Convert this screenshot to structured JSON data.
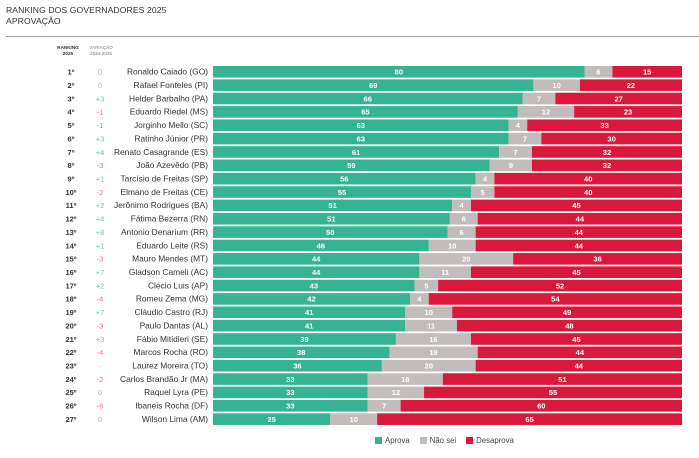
{
  "header": {
    "title_line1": "RANKING DOS GOVERNADORES 2025",
    "title_line2": "APROVAÇÃO"
  },
  "columns": {
    "rank_line1": "RANKING",
    "rank_line2": "2025",
    "variation_line1": "VARIAÇÃO",
    "variation_line2": "2024-2025"
  },
  "colors": {
    "aprova": "#36b393",
    "nao_sei": "#c2bdbb",
    "desaprova": "#d8193c",
    "variation_up": "#6cc7a6",
    "variation_down": "#ee6f8a",
    "variation_neutral": "#bbbbbb"
  },
  "legend": [
    {
      "key": "aprova",
      "label": "Aprova"
    },
    {
      "key": "nao_sei",
      "label": "Não sei"
    },
    {
      "key": "desaprova",
      "label": "Desaprova"
    }
  ],
  "chart_data": {
    "type": "bar",
    "orientation": "horizontal",
    "stacked": true,
    "title": "RANKING DOS GOVERNADORES 2025 — APROVAÇÃO",
    "xlabel": "",
    "ylabel": "",
    "xlim": [
      0,
      100
    ],
    "unit": "%",
    "legend_position": "bottom",
    "grid": false,
    "series_names": [
      "Aprova",
      "Não sei",
      "Desaprova"
    ],
    "rows": [
      {
        "rank": "1º",
        "variation": "0",
        "trend": "neutral",
        "name": "Ronaldo Caiado (GO)",
        "aprova": 80,
        "nao_sei": 6,
        "desaprova": 15
      },
      {
        "rank": "2º",
        "variation": "0",
        "trend": "neutral",
        "name": "Rafael Fonteles (PI)",
        "aprova": 69,
        "nao_sei": 10,
        "desaprova": 22
      },
      {
        "rank": "3º",
        "variation": "+3",
        "trend": "up",
        "name": "Helder Barbalho (PA)",
        "aprova": 66,
        "nao_sei": 7,
        "desaprova": 27
      },
      {
        "rank": "4º",
        "variation": "-1",
        "trend": "down",
        "name": "Eduardo Riedel (MS)",
        "aprova": 65,
        "nao_sei": 12,
        "desaprova": 23
      },
      {
        "rank": "5º",
        "variation": "-1",
        "trend": "down",
        "name": "Jorginho Mello (SC)",
        "aprova": 63,
        "nao_sei": 4,
        "desaprova": 33
      },
      {
        "rank": "6º",
        "variation": "+3",
        "trend": "up",
        "name": "Ratinho Júnior (PR)",
        "aprova": 63,
        "nao_sei": 7,
        "desaprova": 30
      },
      {
        "rank": "7º",
        "variation": "+4",
        "trend": "up",
        "name": "Renato Casagrande (ES)",
        "aprova": 61,
        "nao_sei": 7,
        "desaprova": 32
      },
      {
        "rank": "8º",
        "variation": "-3",
        "trend": "down",
        "name": "João Azevêdo (PB)",
        "aprova": 59,
        "nao_sei": 9,
        "desaprova": 32
      },
      {
        "rank": "9º",
        "variation": "+1",
        "trend": "up",
        "name": "Tarcísio de Freitas (SP)",
        "aprova": 56,
        "nao_sei": 4,
        "desaprova": 40
      },
      {
        "rank": "10º",
        "variation": "-2",
        "trend": "down",
        "name": "Elmano de Freitas (CE)",
        "aprova": 55,
        "nao_sei": 5,
        "desaprova": 40
      },
      {
        "rank": "11º",
        "variation": "+2",
        "trend": "up",
        "name": "Jerônimo Rodrigues (BA)",
        "aprova": 51,
        "nao_sei": 4,
        "desaprova": 45
      },
      {
        "rank": "12º",
        "variation": "+4",
        "trend": "up",
        "name": "Fátima Bezerra (RN)",
        "aprova": 51,
        "nao_sei": 6,
        "desaprova": 44
      },
      {
        "rank": "13º",
        "variation": "+8",
        "trend": "up",
        "name": "Antonio Denarium (RR)",
        "aprova": 50,
        "nao_sei": 6,
        "desaprova": 44
      },
      {
        "rank": "14º",
        "variation": "+1",
        "trend": "up",
        "name": "Eduardo Leite (RS)",
        "aprova": 46,
        "nao_sei": 10,
        "desaprova": 44
      },
      {
        "rank": "15º",
        "variation": "-3",
        "trend": "down",
        "name": "Mauro Mendes (MT)",
        "aprova": 44,
        "nao_sei": 20,
        "desaprova": 36
      },
      {
        "rank": "16º",
        "variation": "+7",
        "trend": "up",
        "name": "Gladson Cameli (AC)",
        "aprova": 44,
        "nao_sei": 11,
        "desaprova": 45
      },
      {
        "rank": "17º",
        "variation": "+2",
        "trend": "up",
        "name": "Clécio Luis (AP)",
        "aprova": 43,
        "nao_sei": 5,
        "desaprova": 52
      },
      {
        "rank": "18º",
        "variation": "-4",
        "trend": "down",
        "name": "Romeu Zema (MG)",
        "aprova": 42,
        "nao_sei": 4,
        "desaprova": 54
      },
      {
        "rank": "19º",
        "variation": "+7",
        "trend": "up",
        "name": "Cláudio Castro (RJ)",
        "aprova": 41,
        "nao_sei": 10,
        "desaprova": 49
      },
      {
        "rank": "20º",
        "variation": "-3",
        "trend": "down",
        "name": "Paulo Dantas (AL)",
        "aprova": 41,
        "nao_sei": 11,
        "desaprova": 48
      },
      {
        "rank": "21º",
        "variation": "+3",
        "trend": "up",
        "name": "Fábio Mitidieri (SE)",
        "aprova": 39,
        "nao_sei": 16,
        "desaprova": 45
      },
      {
        "rank": "22º",
        "variation": "-4",
        "trend": "down",
        "name": "Marcos Rocha (RO)",
        "aprova": 38,
        "nao_sei": 19,
        "desaprova": 44
      },
      {
        "rank": "23º",
        "variation": "-",
        "trend": "neutral",
        "name": "Laurez Moreira (TO)",
        "aprova": 36,
        "nao_sei": 20,
        "desaprova": 44
      },
      {
        "rank": "24º",
        "variation": "-2",
        "trend": "down",
        "name": "Carlos Brandão Jr (MA)",
        "aprova": 33,
        "nao_sei": 16,
        "desaprova": 51
      },
      {
        "rank": "25º",
        "variation": "0",
        "trend": "neutral",
        "name": "Raquel Lyra (PE)",
        "aprova": 33,
        "nao_sei": 12,
        "desaprova": 55
      },
      {
        "rank": "26º",
        "variation": "-6",
        "trend": "down",
        "name": "Ibaneis Rocha (DF)",
        "aprova": 33,
        "nao_sei": 7,
        "desaprova": 60
      },
      {
        "rank": "27º",
        "variation": "0",
        "trend": "neutral",
        "name": "Wilson Lima (AM)",
        "aprova": 25,
        "nao_sei": 10,
        "desaprova": 65
      }
    ]
  }
}
